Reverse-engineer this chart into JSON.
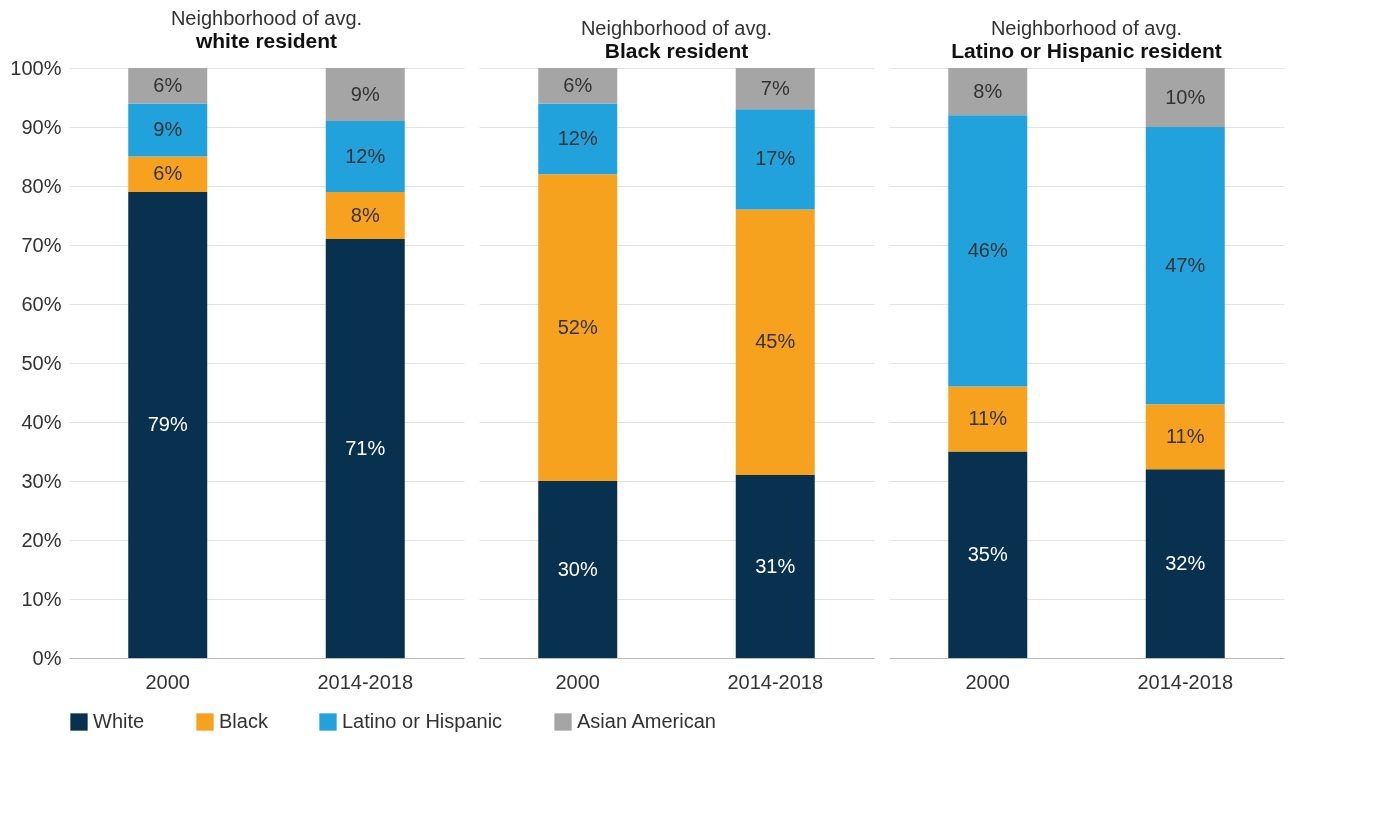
{
  "chart_data": [
    {
      "type": "bar",
      "title": "Neighborhood of avg.",
      "subtitle": "white resident",
      "categories": [
        "2000",
        "2014-2018"
      ],
      "stacked": true,
      "grid": "y",
      "legend": "bottom",
      "ylim": [
        0,
        100
      ],
      "yticks": [
        {
          "value": 0,
          "label": "0%"
        },
        {
          "value": 10,
          "label": "10%"
        },
        {
          "value": 20,
          "label": "20%"
        },
        {
          "value": 30,
          "label": "30%"
        },
        {
          "value": 40,
          "label": "40%"
        },
        {
          "value": 50,
          "label": "50%"
        },
        {
          "value": 60,
          "label": "60%"
        },
        {
          "value": 70,
          "label": "70%"
        },
        {
          "value": 80,
          "label": "80%"
        },
        {
          "value": 90,
          "label": "90%"
        },
        {
          "value": 100,
          "label": "100%"
        }
      ],
      "series": [
        {
          "name": "White",
          "color": "#08304f",
          "values": [
            79,
            71
          ],
          "value_labels": [
            "79%",
            "71%"
          ]
        },
        {
          "name": "Black",
          "color": "#f7a21f",
          "values": [
            6,
            8
          ],
          "value_labels": [
            "6%",
            "8%"
          ]
        },
        {
          "name": "Latino or Hispanic",
          "color": "#22a2dc",
          "values": [
            9,
            12
          ],
          "value_labels": [
            "9%",
            "12%"
          ]
        },
        {
          "name": "Asian American",
          "color": "#a5a5a5",
          "values": [
            6,
            9
          ],
          "value_labels": [
            "6%",
            "9%"
          ]
        }
      ]
    },
    {
      "type": "bar",
      "title": "Neighborhood of avg.",
      "subtitle": "Black resident",
      "categories": [
        "2000",
        "2014-2018"
      ],
      "stacked": true,
      "grid": "y",
      "tick_labels": "x",
      "ylim": [
        0,
        100
      ],
      "yticks": [
        0,
        10,
        20,
        30,
        40,
        50,
        60,
        70,
        80,
        90,
        100
      ],
      "series": [
        {
          "color": "#08304f",
          "values": [
            30,
            31
          ],
          "value_labels": [
            "30%",
            "31%"
          ]
        },
        {
          "color": "#f7a21f",
          "values": [
            52,
            45
          ],
          "value_labels": [
            "52%",
            "45%"
          ]
        },
        {
          "color": "#22a2dc",
          "values": [
            12,
            17
          ],
          "value_labels": [
            "12%",
            "17%"
          ]
        },
        {
          "color": "#a5a5a5",
          "values": [
            6,
            7
          ],
          "value_labels": [
            "6%",
            "7%"
          ]
        }
      ]
    },
    {
      "type": "bar",
      "title": "Neighborhood of avg.",
      "subtitle": "Latino or Hispanic resident",
      "categories": [
        "2000",
        "2014-2018"
      ],
      "stacked": true,
      "grid": "y",
      "tick_labels": "x",
      "ylim": [
        0,
        100
      ],
      "yticks": [
        0,
        10,
        20,
        30,
        40,
        50,
        60,
        70,
        80,
        90,
        100
      ],
      "series": [
        {
          "color": "#08304f",
          "values": [
            35,
            32
          ],
          "value_labels": [
            "35%",
            "32%"
          ]
        },
        {
          "color": "#f7a21f",
          "values": [
            11,
            11
          ],
          "value_labels": [
            "11%",
            "11%"
          ]
        },
        {
          "color": "#22a2dc",
          "values": [
            46,
            47
          ],
          "value_labels": [
            "46%",
            "47%"
          ]
        },
        {
          "color": "#a5a5a5",
          "values": [
            8,
            10
          ],
          "value_labels": [
            "8%",
            "10%"
          ]
        }
      ]
    }
  ]
}
